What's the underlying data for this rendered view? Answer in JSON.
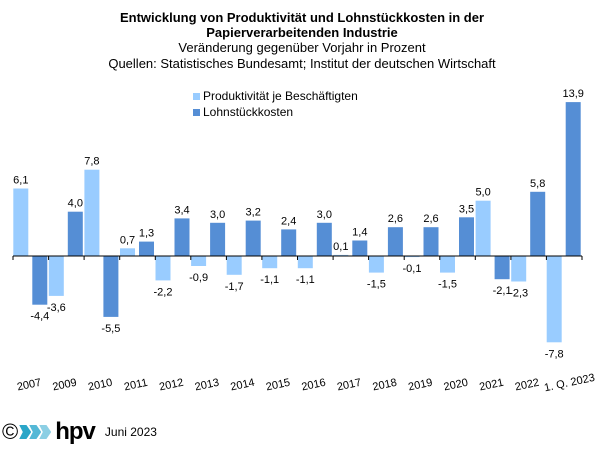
{
  "chart_data": {
    "type": "bar",
    "title": "Entwicklung von Produktivität und Lohnstückkosten  in der Papierverarbeitenden Industrie",
    "title_lines": [
      "Entwicklung von Produktivität und Lohnstückkosten  in der",
      "Papierverarbeitenden Industrie"
    ],
    "subtitle": "Veränderung  gegenüber  Vorjahr  in Prozent",
    "source": "Quellen: Statistisches Bundesamt; Institut der deutschen Wirtschaft",
    "xlabel": "",
    "ylabel": "",
    "categories": [
      "2007",
      "2009",
      "2010",
      "2011",
      "2012",
      "2013",
      "2014",
      "2015",
      "2016",
      "2017",
      "2018",
      "2019",
      "2020",
      "2021",
      "2022",
      "1. Q. 2023"
    ],
    "series": [
      {
        "name": "Produktivität je Beschäftigten",
        "color": "#99ccff",
        "values": [
          6.1,
          -3.6,
          7.8,
          0.7,
          -2.2,
          -0.9,
          -1.7,
          -1.1,
          -1.1,
          0.1,
          -1.5,
          -0.1,
          -1.5,
          5.0,
          -2.3,
          -7.8
        ],
        "labels": [
          "6,1",
          "-3,6",
          "7,8",
          "0,7",
          "-2,2",
          "-0,9",
          "-1,7",
          "-1,1",
          "-1,1",
          "0,1",
          "-1,5",
          "-0,1",
          "-1,5",
          "5,0",
          "-2,3",
          "-7,8"
        ]
      },
      {
        "name": "Lohnstückkosten",
        "color": "#558ed5",
        "values": [
          -4.4,
          4.0,
          -5.5,
          1.3,
          3.4,
          3.0,
          3.2,
          2.4,
          3.0,
          1.4,
          2.6,
          2.6,
          3.5,
          -2.1,
          5.8,
          13.9
        ],
        "labels": [
          "-4,4",
          "4,0",
          "-5,5",
          "1,3",
          "3,4",
          "3,0",
          "3,2",
          "2,4",
          "3,0",
          "1,4",
          "2,6",
          "2,6",
          "3,5",
          "-2,1",
          "5,8",
          "13,9"
        ]
      }
    ],
    "ylim": [
      -9,
      15
    ],
    "grid": false,
    "legend": "top-center",
    "y_axis_visible": false
  },
  "footer": {
    "copyright": "©",
    "logo_text": "hpv",
    "logo_wave_colors": [
      "#2aa6c8",
      "#54b8d6",
      "#8ccfe4"
    ],
    "date": "Juni 2023"
  }
}
